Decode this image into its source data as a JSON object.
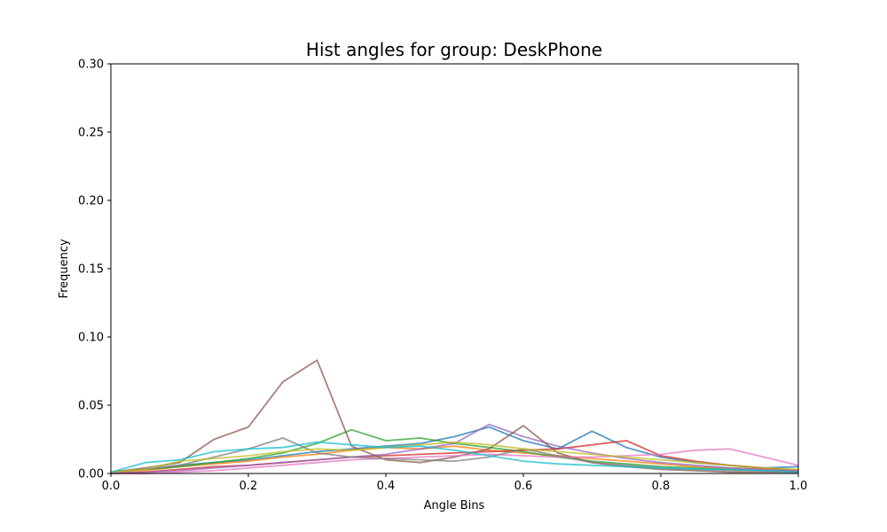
{
  "chart_data": {
    "type": "line",
    "title": "Hist angles for group: DeskPhone",
    "xlabel": "Angle Bins",
    "ylabel": "Frequency",
    "xlim": [
      0.0,
      1.0
    ],
    "ylim": [
      0.0,
      0.3
    ],
    "xticks": [
      "0.0",
      "0.2",
      "0.4",
      "0.6",
      "0.8",
      "1.0"
    ],
    "yticks": [
      "0.00",
      "0.05",
      "0.10",
      "0.15",
      "0.20",
      "0.25",
      "0.30"
    ],
    "grid": false,
    "x": [
      0.0,
      0.05,
      0.1,
      0.15,
      0.2,
      0.25,
      0.3,
      0.35,
      0.4,
      0.45,
      0.5,
      0.55,
      0.6,
      0.65,
      0.7,
      0.75,
      0.8,
      0.85,
      0.9,
      0.95,
      1.0
    ],
    "series": [
      {
        "color": "#1f77b4",
        "values": [
          0.001,
          0.003,
          0.006,
          0.008,
          0.01,
          0.013,
          0.016,
          0.018,
          0.02,
          0.022,
          0.027,
          0.034,
          0.024,
          0.018,
          0.031,
          0.019,
          0.012,
          0.008,
          0.006,
          0.004,
          0.005
        ]
      },
      {
        "color": "#ff7f0e",
        "values": [
          0.001,
          0.002,
          0.005,
          0.007,
          0.009,
          0.012,
          0.014,
          0.017,
          0.019,
          0.018,
          0.02,
          0.017,
          0.015,
          0.013,
          0.011,
          0.009,
          0.007,
          0.005,
          0.004,
          0.003,
          0.002
        ]
      },
      {
        "color": "#2ca02c",
        "values": [
          0.001,
          0.003,
          0.005,
          0.008,
          0.011,
          0.015,
          0.022,
          0.032,
          0.024,
          0.026,
          0.022,
          0.019,
          0.016,
          0.012,
          0.009,
          0.007,
          0.005,
          0.004,
          0.003,
          0.002,
          0.001
        ]
      },
      {
        "color": "#d62728",
        "values": [
          0.0,
          0.001,
          0.003,
          0.005,
          0.006,
          0.008,
          0.01,
          0.012,
          0.013,
          0.014,
          0.015,
          0.016,
          0.017,
          0.018,
          0.021,
          0.024,
          0.013,
          0.009,
          0.006,
          0.004,
          0.002
        ]
      },
      {
        "color": "#9467bd",
        "values": [
          0.0,
          0.001,
          0.002,
          0.004,
          0.006,
          0.008,
          0.01,
          0.012,
          0.014,
          0.018,
          0.022,
          0.036,
          0.027,
          0.02,
          0.015,
          0.011,
          0.008,
          0.006,
          0.004,
          0.003,
          0.002
        ]
      },
      {
        "color": "#8c564b",
        "values": [
          0.001,
          0.004,
          0.008,
          0.025,
          0.034,
          0.067,
          0.083,
          0.02,
          0.01,
          0.008,
          0.012,
          0.018,
          0.035,
          0.015,
          0.008,
          0.005,
          0.003,
          0.002,
          0.001,
          0.001,
          0.001
        ]
      },
      {
        "color": "#e377c2",
        "values": [
          0.0,
          0.0,
          0.001,
          0.002,
          0.004,
          0.006,
          0.008,
          0.01,
          0.011,
          0.012,
          0.013,
          0.014,
          0.013,
          0.012,
          0.012,
          0.013,
          0.014,
          0.017,
          0.018,
          0.012,
          0.006
        ]
      },
      {
        "color": "#7f7f7f",
        "values": [
          0.001,
          0.003,
          0.006,
          0.012,
          0.018,
          0.026,
          0.015,
          0.012,
          0.011,
          0.01,
          0.009,
          0.012,
          0.018,
          0.013,
          0.008,
          0.006,
          0.004,
          0.003,
          0.002,
          0.002,
          0.001
        ]
      },
      {
        "color": "#bcbd22",
        "values": [
          0.001,
          0.003,
          0.009,
          0.011,
          0.013,
          0.016,
          0.018,
          0.017,
          0.019,
          0.021,
          0.023,
          0.021,
          0.018,
          0.016,
          0.014,
          0.012,
          0.01,
          0.008,
          0.006,
          0.004,
          0.003
        ]
      },
      {
        "color": "#17becf",
        "values": [
          0.001,
          0.008,
          0.01,
          0.016,
          0.018,
          0.019,
          0.023,
          0.021,
          0.019,
          0.02,
          0.017,
          0.013,
          0.009,
          0.007,
          0.006,
          0.005,
          0.004,
          0.003,
          0.003,
          0.002,
          0.001
        ]
      }
    ]
  }
}
